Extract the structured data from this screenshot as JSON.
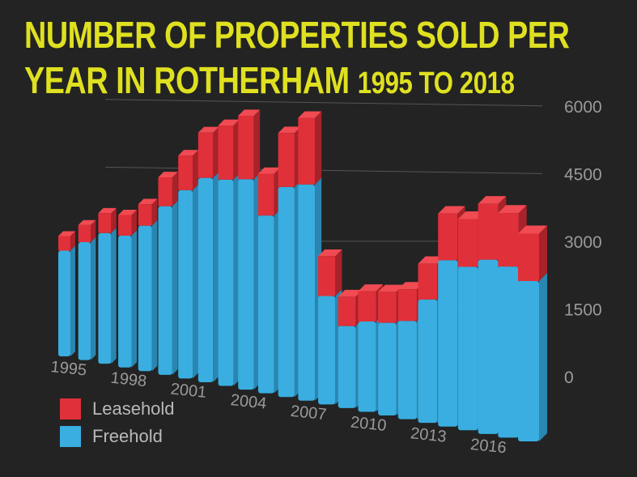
{
  "chart_data": {
    "type": "bar",
    "stacked": true,
    "title_line1": "NUMBER OF PROPERTIES SOLD PER",
    "title_line2_main": "YEAR IN ROTHERHAM",
    "title_line2_sub": "1995 TO 2018",
    "categories": [
      "1995",
      "1996",
      "1997",
      "1998",
      "1999",
      "2000",
      "2001",
      "2002",
      "2003",
      "2004",
      "2005",
      "2006",
      "2007",
      "2008",
      "2009",
      "2010",
      "2011",
      "2012",
      "2013",
      "2014",
      "2015",
      "2016",
      "2017",
      "2018"
    ],
    "category_labels": [
      "1995",
      "1998",
      "2001",
      "2004",
      "2007",
      "2010",
      "2013",
      "2016"
    ],
    "series": [
      {
        "name": "Freehold",
        "color": "#3aaee0",
        "values": [
          2900,
          3100,
          3300,
          3200,
          3400,
          3800,
          4100,
          4300,
          4200,
          4150,
          3400,
          3900,
          3900,
          1900,
          1400,
          1500,
          1500,
          1550,
          1900,
          2500,
          2400,
          2500,
          2400,
          2200
        ]
      },
      {
        "name": "Leasehold",
        "color": "#e0303a",
        "values": [
          400,
          450,
          500,
          500,
          500,
          650,
          750,
          950,
          1100,
          1250,
          800,
          1000,
          1200,
          700,
          500,
          500,
          500,
          500,
          550,
          700,
          700,
          800,
          750,
          650
        ]
      }
    ],
    "yticks": [
      "0",
      "1500",
      "3000",
      "4500",
      "6000"
    ],
    "ylim": [
      0,
      6000
    ],
    "grid": true,
    "legend_position": "bottom-left"
  }
}
